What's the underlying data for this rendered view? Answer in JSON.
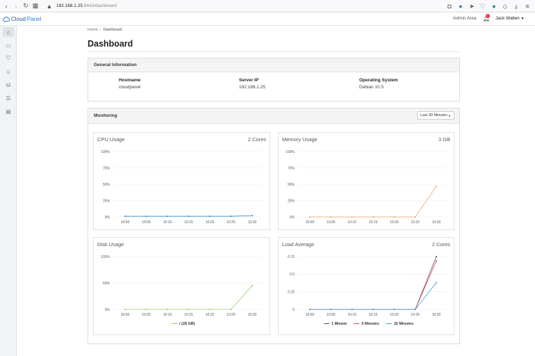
{
  "browser": {
    "url_host": "192.168.1.25",
    "url_rest": ":8443/dashboard"
  },
  "app": {
    "logo_cloud": "Cloud",
    "logo_panel": "Panel",
    "admin_area": "Admin Area",
    "notification_count": "0",
    "user_name": "Jack Wallen"
  },
  "breadcrumb": {
    "home": "Home",
    "sep": "›",
    "current": "Dashboard"
  },
  "page_title": "Dashboard",
  "general": {
    "title": "General Information",
    "hostname_label": "Hostname",
    "hostname_value": "cloudpanel",
    "ip_label": "Server IP",
    "ip_value": "192.168.1.25",
    "os_label": "Operating System",
    "os_value": "Debian 10.5"
  },
  "monitoring": {
    "title": "Monitoring",
    "range_select": "Last 30 Minutes"
  },
  "colors": {
    "blue": "#2f86c9",
    "orange": "#f0a35e",
    "green": "#8fcf6a",
    "red": "#e0405a",
    "light_blue": "#3fa0e0"
  },
  "chart_data": [
    {
      "type": "line",
      "title": "CPU Usage",
      "info": "2 Cores",
      "x": [
        "10:00",
        "10:05",
        "10:10",
        "10:15",
        "10:20",
        "10:25",
        "10:30"
      ],
      "y_ticks": [
        "0%",
        "25%",
        "50%",
        "75%",
        "100%"
      ],
      "ylim": [
        0,
        100
      ],
      "series": [
        {
          "values": [
            1,
            1,
            1,
            1,
            1,
            1,
            2
          ],
          "color": "#2f86c9"
        }
      ]
    },
    {
      "type": "line",
      "title": "Memory Usage",
      "info": "3 GB",
      "x": [
        "10:00",
        "10:05",
        "10:10",
        "10:15",
        "10:20",
        "10:25",
        "10:30"
      ],
      "y_ticks": [
        "0%",
        "25%",
        "50%",
        "75%",
        "100%"
      ],
      "ylim": [
        0,
        100
      ],
      "series": [
        {
          "values": [
            0,
            0,
            0,
            0,
            0,
            0,
            47
          ],
          "color": "#f0a35e"
        }
      ]
    },
    {
      "type": "line",
      "title": "Disk Usage",
      "info": "",
      "x": [
        "10:00",
        "10:05",
        "10:10",
        "10:15",
        "10:20",
        "10:25",
        "10:30"
      ],
      "y_ticks": [
        "0%",
        "50%",
        "100%"
      ],
      "ylim": [
        0,
        100
      ],
      "series": [
        {
          "name": "/ (28 GB)",
          "values": [
            0,
            0,
            0,
            0,
            0,
            0,
            45
          ],
          "color": "#8fcf6a"
        }
      ]
    },
    {
      "type": "line",
      "title": "Load Average",
      "info": "2 Cores",
      "x": [
        "10:00",
        "10:05",
        "10:10",
        "10:15",
        "10:20",
        "10:25",
        "10:30"
      ],
      "y_ticks": [
        "0",
        "0.25",
        "0.5",
        "0.75"
      ],
      "ylim": [
        0,
        0.75
      ],
      "series": [
        {
          "name": "1 Minute",
          "values": [
            0,
            0,
            0,
            0,
            0,
            0,
            0.75
          ],
          "color": "#555555"
        },
        {
          "name": "5 Minutes",
          "values": [
            0,
            0,
            0,
            0,
            0,
            0,
            0.69
          ],
          "color": "#e0405a"
        },
        {
          "name": "15 Minutes",
          "values": [
            0,
            0,
            0,
            0,
            0,
            0,
            0.38
          ],
          "color": "#3fa0e0"
        }
      ]
    }
  ]
}
